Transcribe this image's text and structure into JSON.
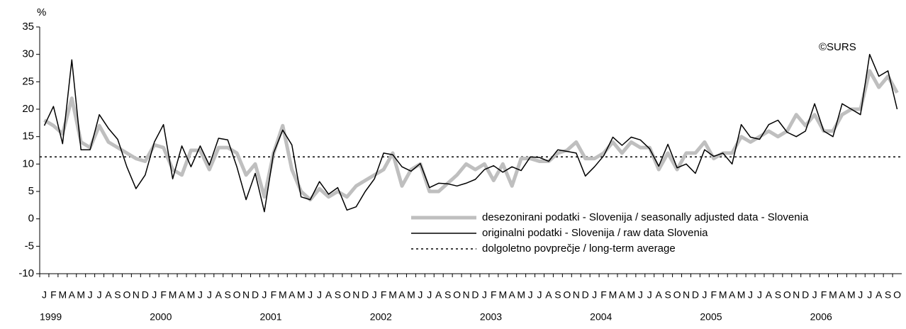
{
  "chart_data": {
    "type": "line",
    "y_label": "%",
    "annotation": "©SURS",
    "categories": [
      "J",
      "F",
      "M",
      "A",
      "M",
      "J",
      "J",
      "A",
      "S",
      "O",
      "N",
      "D",
      "J",
      "F",
      "M",
      "A",
      "M",
      "J",
      "J",
      "A",
      "S",
      "O",
      "N",
      "D",
      "J",
      "F",
      "M",
      "A",
      "M",
      "J",
      "J",
      "A",
      "S",
      "O",
      "N",
      "D",
      "J",
      "F",
      "M",
      "A",
      "M",
      "J",
      "J",
      "A",
      "S",
      "O",
      "N",
      "D",
      "J",
      "F",
      "M",
      "A",
      "M",
      "J",
      "J",
      "A",
      "S",
      "O",
      "N",
      "D",
      "J",
      "F",
      "M",
      "A",
      "M",
      "J",
      "J",
      "A",
      "S",
      "O",
      "N",
      "D",
      "J",
      "F",
      "M",
      "A",
      "M",
      "J",
      "J",
      "A",
      "S",
      "O",
      "N",
      "D",
      "J",
      "F",
      "M",
      "A",
      "M",
      "J",
      "J",
      "A",
      "S",
      "O"
    ],
    "years": [
      1999,
      2000,
      2001,
      2002,
      2003,
      2004,
      2005,
      2006
    ],
    "series": [
      {
        "name": "desezonirani podatki - Slovenija / seasonally adjusted data - Slovenia",
        "color": "#bfbfbf",
        "width": 5,
        "values": [
          18,
          17,
          15.5,
          22,
          14,
          13,
          17,
          14,
          13,
          12,
          11,
          10.5,
          13.5,
          13,
          9,
          8,
          12.5,
          12.5,
          9,
          13,
          13,
          12,
          8,
          10,
          4,
          12,
          17,
          9,
          5,
          3.5,
          5.5,
          4,
          5,
          4,
          6,
          7,
          8,
          9,
          12,
          6,
          9,
          10,
          5,
          5,
          6.5,
          8,
          10,
          9,
          10,
          7,
          10,
          6,
          11,
          11,
          10.5,
          10.5,
          12,
          12.5,
          14,
          11,
          11,
          12,
          14,
          12,
          14,
          13,
          13,
          9,
          12,
          9,
          12,
          12,
          14,
          11,
          12,
          12,
          15,
          14,
          15,
          16,
          15,
          16,
          19,
          17,
          19,
          16,
          16,
          19,
          20,
          20,
          27,
          24,
          26,
          23
        ]
      },
      {
        "name": "originalni podatki - Slovenija / raw data Slovenia",
        "color": "#000000",
        "width": 1.5,
        "values": [
          17,
          20.5,
          13.7,
          29,
          12.6,
          12.6,
          19,
          16.5,
          14.5,
          9.5,
          5.5,
          8,
          14,
          17.2,
          7.3,
          13.3,
          9.5,
          13.3,
          9.8,
          14.7,
          14.4,
          9.5,
          3.5,
          8.3,
          1.3,
          12,
          16.2,
          13.5,
          4,
          3.5,
          6.8,
          4.5,
          5.7,
          1.6,
          2.2,
          5,
          7.3,
          12,
          11.7,
          9.5,
          8.7,
          10.1,
          5.7,
          6.5,
          6.4,
          6,
          6.5,
          7.2,
          9,
          9.7,
          8.5,
          9.5,
          8.8,
          11.3,
          11.2,
          10.5,
          12.6,
          12.3,
          12,
          7.8,
          9.5,
          11.5,
          14.9,
          13.4,
          14.9,
          14.4,
          12.8,
          9.6,
          13.6,
          9.3,
          10,
          8.3,
          12.6,
          11.4,
          12,
          10,
          17.2,
          14.9,
          14.5,
          17.2,
          18,
          15.8,
          15,
          16,
          21,
          16,
          15,
          21,
          20,
          19,
          30,
          26,
          27,
          20
        ]
      }
    ],
    "reference_line": {
      "name": "dolgoletno povprečje / long-term average",
      "value": 11.3,
      "color": "#000000"
    },
    "ylim": [
      -10,
      35
    ],
    "yticks": [
      -10,
      -5,
      0,
      5,
      10,
      15,
      20,
      25,
      30,
      35
    ],
    "grid": false
  }
}
